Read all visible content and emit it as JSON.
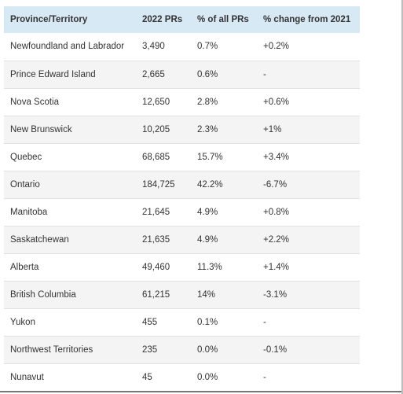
{
  "table": {
    "headers": [
      "Province/Territory",
      "2022 PRs",
      "% of all PRs",
      "% change from 2021"
    ],
    "rows": [
      [
        "Newfoundland and Labrador",
        "3,490",
        "0.7%",
        "+0.2%"
      ],
      [
        "Prince Edward Island",
        "2,665",
        "0.6%",
        "-"
      ],
      [
        "Nova Scotia",
        "12,650",
        "2.8%",
        "+0.6%"
      ],
      [
        "New Brunswick",
        "10,205",
        "2.3%",
        "+1%"
      ],
      [
        "Quebec",
        "68,685",
        "15.7%",
        "+3.4%"
      ],
      [
        "Ontario",
        "184,725",
        "42.2%",
        "-6.7%"
      ],
      [
        "Manitoba",
        "21,645",
        "4.9%",
        "+0.8%"
      ],
      [
        "Saskatchewan",
        "21,635",
        "4.9%",
        "+2.2%"
      ],
      [
        "Alberta",
        "49,460",
        "11.3%",
        "+1.4%"
      ],
      [
        "British Columbia",
        "61,215",
        "14%",
        "-3.1%"
      ],
      [
        "Yukon",
        "455",
        "0.1%",
        "-"
      ],
      [
        "Northwest Territories",
        "235",
        "0.0%",
        "-0.1%"
      ],
      [
        "Nunavut",
        "45",
        "0.0%",
        "-"
      ]
    ]
  },
  "colors": {
    "header_bg": "#d8e9f6",
    "row_alt_bg": "#f4f4f4",
    "text": "#333333"
  }
}
